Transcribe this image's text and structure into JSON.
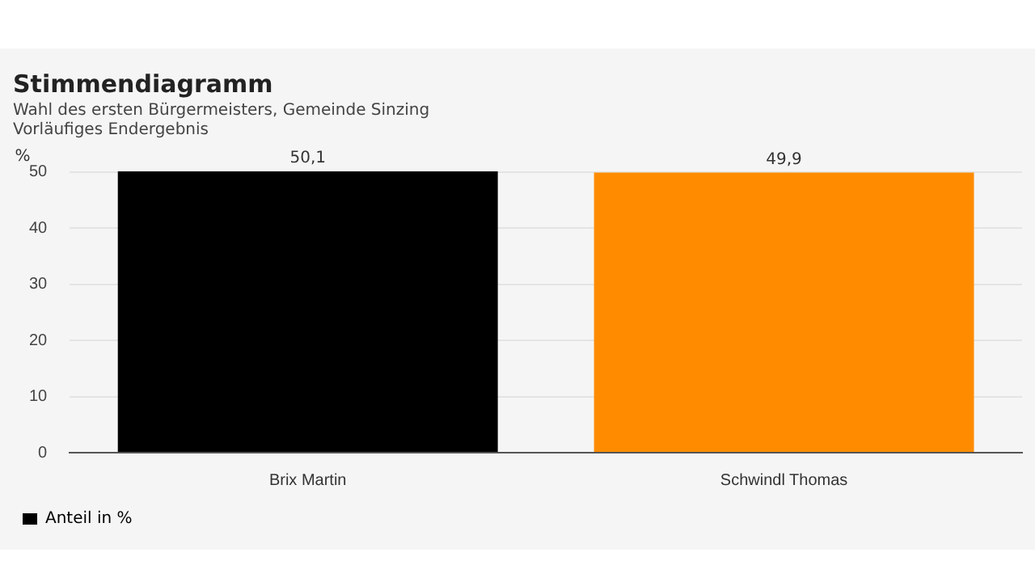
{
  "chart_data": {
    "type": "bar",
    "title": "Stimmendiagramm",
    "subtitle": "Wahl des ersten Bürgermeisters, Gemeinde Sinzing\nVorläufiges Endergebnis",
    "ylabel": "%",
    "categories": [
      "Brix Martin",
      "Schwindl Thomas"
    ],
    "series": [
      {
        "name": "Anteil in %",
        "color": "#000000",
        "colors": [
          "#000000",
          "#ff8c00"
        ],
        "values": [
          50.1,
          49.9
        ],
        "value_labels": [
          "50,1",
          "49,9"
        ]
      }
    ],
    "ylim": [
      0,
      50.1
    ],
    "yticks": [
      0,
      10,
      20,
      30,
      40,
      50
    ],
    "grid": "y",
    "legend": "bottom left"
  }
}
